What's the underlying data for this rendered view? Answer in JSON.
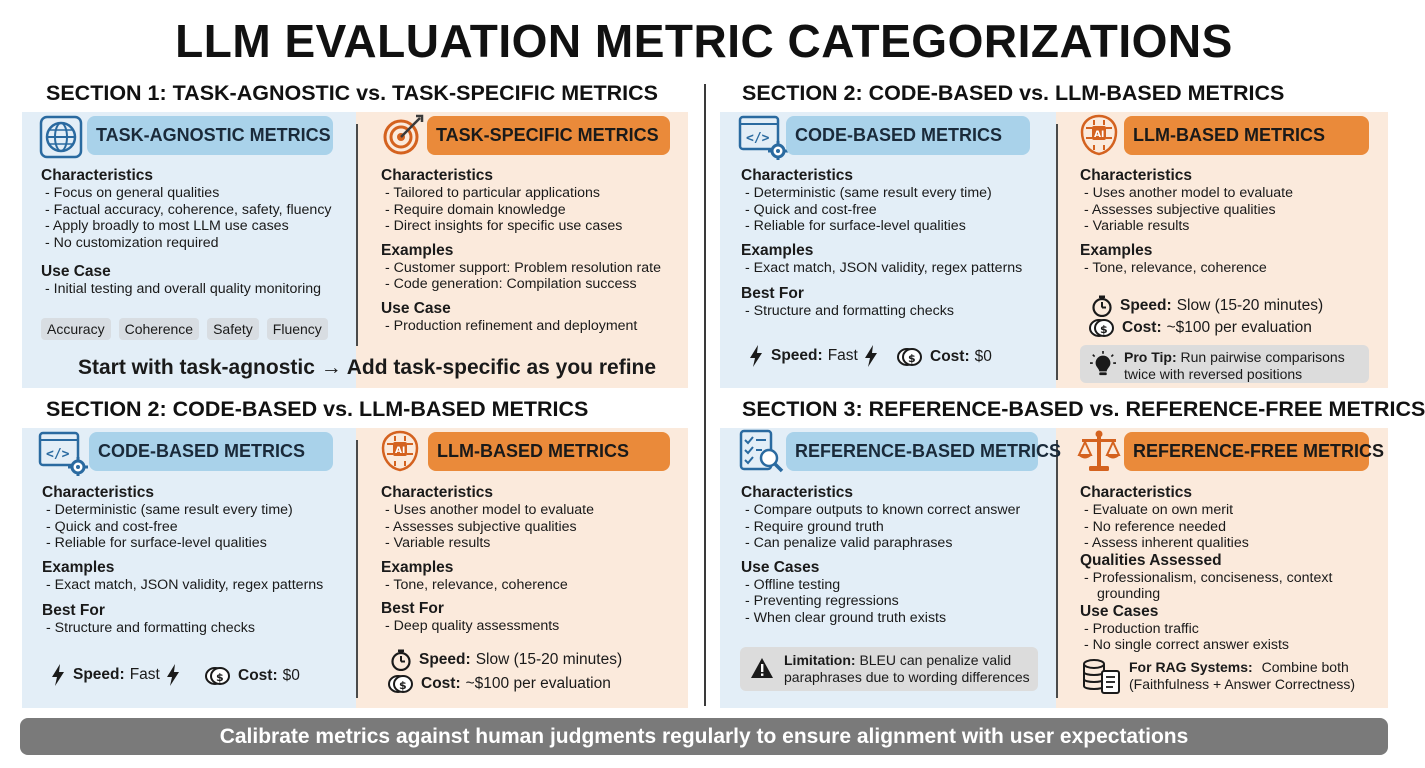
{
  "title": "LLM EVALUATION METRIC CATEGORIZATIONS",
  "colors": {
    "blue_bg": "#e3eef7",
    "orange_bg": "#fbeadc",
    "blue_pill": "#a9d2ea",
    "orange_pill": "#ea8a3a",
    "footer": "#7a7a7a"
  },
  "section1": {
    "title": "SECTION 1: TASK-AGNOSTIC vs. TASK-SPECIFIC METRICS",
    "left": {
      "icon": "globe-icon",
      "label": "TASK-AGNOSTIC METRICS",
      "char_h": "Characteristics",
      "chars": [
        "- Focus on general qualities",
        "- Factual accuracy, coherence, safety, fluency",
        "- Apply broadly to most LLM use cases",
        "- No customization required"
      ],
      "use_h": "Use Case",
      "use": [
        "- Initial testing and overall quality monitoring"
      ],
      "chips": [
        "Accuracy",
        "Coherence",
        "Safety",
        "Fluency"
      ]
    },
    "right": {
      "icon": "target-icon",
      "label": "TASK-SPECIFIC METRICS",
      "char_h": "Characteristics",
      "chars": [
        "- Tailored to particular applications",
        "- Require domain knowledge",
        "- Direct insights for specific use cases"
      ],
      "ex_h": "Examples",
      "ex": [
        "- Customer support: Problem resolution rate",
        "- Code generation: Compilation success"
      ],
      "use_h": "Use Case",
      "use": [
        "- Production refinement and deployment"
      ]
    },
    "tagline": "Start with task-agnostic → Add task-specific as you refine"
  },
  "section2a": {
    "title": "SECTION 2: CODE-BASED vs. LLM-BASED METRICS",
    "left": {
      "icon": "code-gear-icon",
      "label": "CODE-BASED METRICS",
      "char_h": "Characteristics",
      "chars": [
        "- Deterministic (same result every time)",
        "- Quick and cost-free",
        "- Reliable for surface-level qualities"
      ],
      "ex_h": "Examples",
      "ex": [
        "- Exact match, JSON validity, regex patterns"
      ],
      "best_h": "Best For",
      "best": [
        "- Structure and formatting checks"
      ],
      "speed_label": "Speed:",
      "speed_value": "Fast",
      "cost_label": "Cost:",
      "cost_value": "$0"
    },
    "right": {
      "icon": "ai-brain-icon",
      "label": "LLM-BASED METRICS",
      "char_h": "Characteristics",
      "chars": [
        "- Uses another model to evaluate",
        "- Assesses subjective qualities",
        "- Variable results"
      ],
      "ex_h": "Examples",
      "ex": [
        "- Tone, relevance, coherence"
      ],
      "speed_label": "Speed:",
      "speed_value": "Slow (15-20 minutes)",
      "cost_label": "Cost:",
      "cost_value": "~$100 per evaluation",
      "tip_label": "Pro Tip:",
      "tip_text": "Run pairwise comparisons",
      "tip_text2": "twice with reversed positions"
    }
  },
  "section2b": {
    "title": "SECTION 2: CODE-BASED vs. LLM-BASED METRICS",
    "left": {
      "icon": "code-gear-icon",
      "label": "CODE-BASED METRICS",
      "char_h": "Characteristics",
      "chars": [
        "- Deterministic (same result every time)",
        "- Quick and cost-free",
        "- Reliable for surface-level qualities"
      ],
      "ex_h": "Examples",
      "ex": [
        "- Exact match, JSON validity, regex patterns"
      ],
      "best_h": "Best For",
      "best": [
        "- Structure and formatting checks"
      ],
      "speed_label": "Speed:",
      "speed_value": "Fast",
      "cost_label": "Cost:",
      "cost_value": "$0"
    },
    "right": {
      "icon": "ai-brain-icon",
      "label": "LLM-BASED METRICS",
      "char_h": "Characteristics",
      "chars": [
        "- Uses another model to evaluate",
        "- Assesses subjective qualities",
        "- Variable results"
      ],
      "ex_h": "Examples",
      "ex": [
        "- Tone, relevance, coherence"
      ],
      "best_h": "Best For",
      "best": [
        "- Deep quality assessments"
      ],
      "speed_label": "Speed:",
      "speed_value": "Slow (15-20 minutes)",
      "cost_label": "Cost:",
      "cost_value": "~$100 per evaluation"
    }
  },
  "section3": {
    "title": "SECTION 3: REFERENCE-BASED vs. REFERENCE-FREE METRICS",
    "left": {
      "icon": "checklist-magnifier-icon",
      "label": "REFERENCE-BASED METRICS",
      "char_h": "Characteristics",
      "chars": [
        "- Compare outputs to known correct answer",
        "- Require ground truth",
        "- Can penalize valid paraphrases"
      ],
      "use_h": "Use Cases",
      "use": [
        "- Offline testing",
        "- Preventing regressions",
        "- When clear ground truth exists"
      ],
      "lim_label": "Limitation:",
      "lim_text": "BLEU can penalize valid",
      "lim_text2": "paraphrases due to wording differences"
    },
    "right": {
      "icon": "scales-icon",
      "label": "REFERENCE-FREE METRICS",
      "char_h": "Characteristics",
      "chars": [
        "- Evaluate on own merit",
        "- No reference needed",
        "- Assess inherent qualities"
      ],
      "qual_h": "Qualities Assessed",
      "qual": [
        "- Professionalism, conciseness, context",
        "grounding"
      ],
      "use_h": "Use Cases",
      "use": [
        "- Production traffic",
        "- No single correct answer exists"
      ],
      "rag_label": "For RAG Systems:",
      "rag_text": "Combine both",
      "rag_text2": "(Faithfulness + Answer Correctness)"
    }
  },
  "footer": "Calibrate metrics against human judgments regularly to ensure alignment with user expectations"
}
